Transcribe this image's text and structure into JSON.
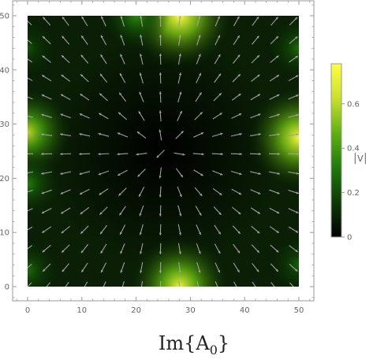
{
  "chart_data": {
    "type": "heatmap",
    "subtype": "vector field plot over density heatmap",
    "title": "Im{A",
    "title_subscript": "0",
    "title_suffix": "}",
    "xlim": [
      0,
      50
    ],
    "ylim": [
      0,
      50
    ],
    "x_ticks": [
      0,
      10,
      20,
      30,
      40,
      50
    ],
    "y_ticks": [
      0,
      10,
      20,
      30,
      40,
      50
    ],
    "x_tick_labels": [
      "0",
      "10",
      "20",
      "30",
      "40",
      "50"
    ],
    "y_tick_labels": [
      "0",
      "10",
      "20",
      "30",
      "40",
      "50"
    ],
    "grid": false,
    "colorbar": {
      "label": "|v|",
      "min": 0,
      "max": 0.78,
      "ticks": [
        0,
        0.2,
        0.4,
        0.6
      ],
      "tick_labels": [
        "0",
        "0.2",
        "0.4",
        "0.6"
      ],
      "colors": [
        "#000000",
        "#0d3a04",
        "#1f7a0a",
        "#5fb10f",
        "#c9e02a",
        "#ffff40"
      ]
    },
    "field_center": [
      25,
      25
    ],
    "hotspots": [
      {
        "x": 28,
        "y": 50,
        "value": 0.78
      },
      {
        "x": 28,
        "y": 0,
        "value": 0.72
      },
      {
        "x": 0,
        "y": 28.5,
        "value": 0.6
      },
      {
        "x": 50,
        "y": 27.5,
        "value": 0.75
      },
      {
        "x": 20,
        "y": 50,
        "value": 0.35
      },
      {
        "x": 0,
        "y": 19,
        "value": 0.32
      },
      {
        "x": 0,
        "y": 3,
        "value": 0.28
      },
      {
        "x": 50,
        "y": 44,
        "value": 0.28
      },
      {
        "x": 50,
        "y": 4,
        "value": 0.25
      },
      {
        "x": 0,
        "y": 44,
        "value": 0.22
      }
    ],
    "arrow_grid": {
      "x": [
        0,
        3.5,
        7,
        10.5,
        14,
        17.5,
        21,
        24.5,
        28,
        31.5,
        35,
        38.5,
        42,
        45.5,
        49
      ],
      "y": [
        0,
        3.5,
        7,
        10.5,
        14,
        17.5,
        21,
        24.5,
        28,
        31.5,
        35,
        38.5,
        42,
        45.5,
        49
      ]
    },
    "arrow_color": "#a0a0a0"
  }
}
